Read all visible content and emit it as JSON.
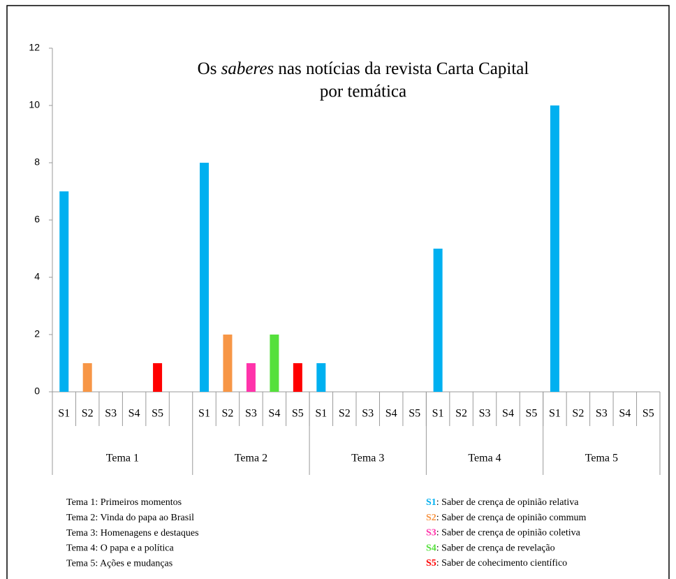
{
  "chart_data": {
    "type": "bar",
    "title": {
      "before": "Os ",
      "italic": "saberes",
      "after": " nas notícias da revista Carta Capital",
      "line2": "por temática"
    },
    "series": [
      {
        "name": "S1",
        "color": "#00b0f0"
      },
      {
        "name": "S2",
        "color": "#f79646"
      },
      {
        "name": "S3",
        "color": "#ff33aa"
      },
      {
        "name": "S4",
        "color": "#55e03c"
      },
      {
        "name": "S5",
        "color": "#ff0000"
      }
    ],
    "groups": [
      {
        "name": "Tema 1",
        "values": [
          7,
          1,
          0,
          0,
          1
        ]
      },
      {
        "name": "Tema 2",
        "values": [
          8,
          2,
          1,
          2,
          1
        ]
      },
      {
        "name": "Tema 3",
        "values": [
          1,
          0,
          0,
          0,
          0
        ]
      },
      {
        "name": "Tema 4",
        "values": [
          5,
          0,
          0,
          0,
          0
        ]
      },
      {
        "name": "Tema 5",
        "values": [
          10,
          0,
          0,
          0,
          0
        ]
      }
    ],
    "ylim": [
      0,
      12
    ],
    "yticks": [
      0,
      2,
      4,
      6,
      8,
      10,
      12
    ],
    "notes": [
      "Tema 1: Primeiros momentos",
      "Tema 2: Vinda do papa ao Brasil",
      "Tema 3: Homenagens e destaques",
      "Tema 4: O papa e a política",
      "Tema 5: Ações e mudanças"
    ],
    "legend": [
      {
        "key": "S1",
        "text": ": Saber de crença de opinião relativa"
      },
      {
        "key": "S2",
        "text": ": Saber de crença de opinião commum"
      },
      {
        "key": "S3",
        "text": ": Saber de crença de opinião coletiva"
      },
      {
        "key": "S4",
        "text": ": Saber de crença de revelação"
      },
      {
        "key": "S5",
        "text": ": Saber de cohecimento científico"
      }
    ]
  }
}
